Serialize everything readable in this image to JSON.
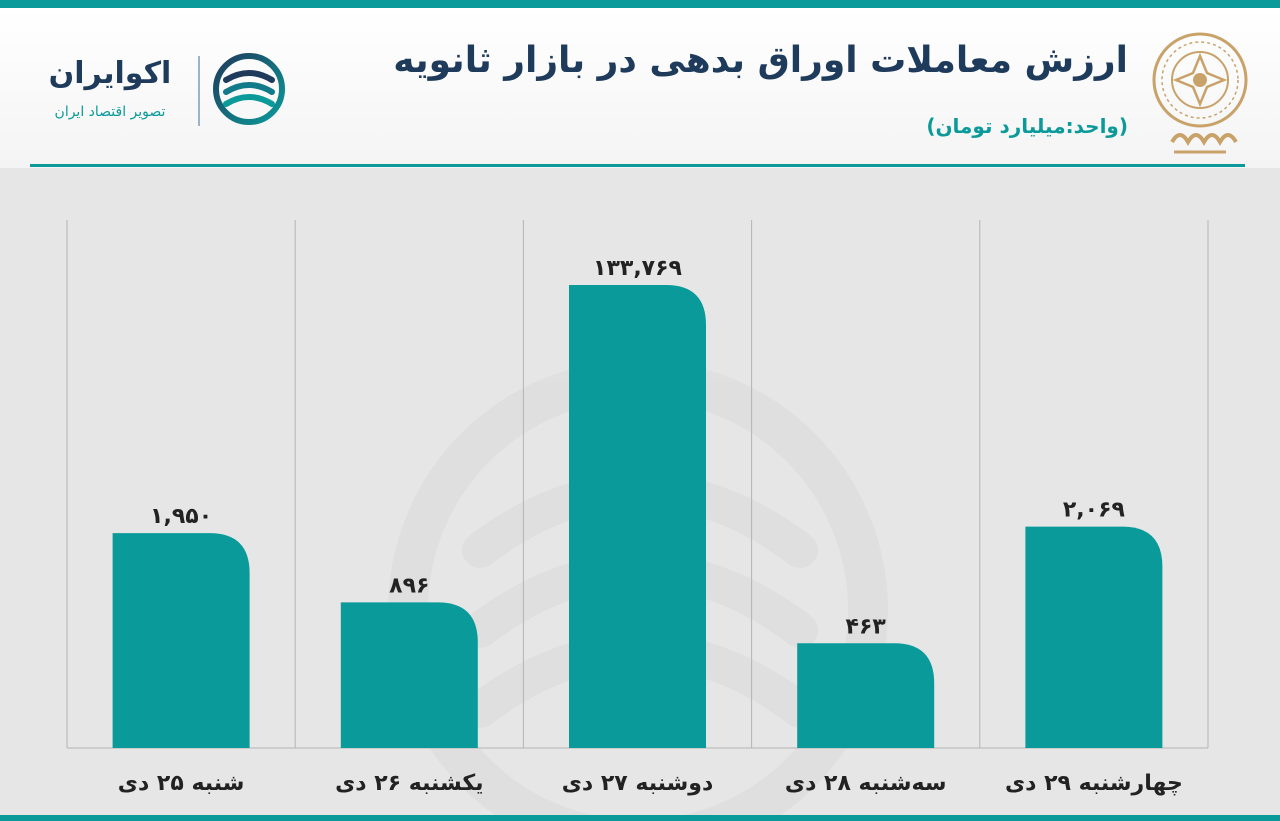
{
  "header": {
    "title": "ارزش معاملات اوراق بدهی در بازار ثانویه",
    "subtitle": "(واحد:میلیارد تومان)",
    "brand_name": "اکوایران",
    "brand_tagline": "تصویر اقتصاد ایران"
  },
  "colors": {
    "bar": "#0b9a9a",
    "title": "#1f3b5c",
    "accent": "#0b9a9a",
    "grid": "#b4b4b4",
    "background": "#e6e6e6"
  },
  "chart_data": {
    "type": "bar",
    "title": "ارزش معاملات اوراق بدهی در بازار ثانویه",
    "subtitle": "(واحد:میلیارد تومان)",
    "xlabel": "",
    "ylabel": "",
    "grid": "vertical separators between categories",
    "categories": [
      "شنبه ۲۵ دی",
      "یکشنبه ۲۶ دی",
      "دوشنبه ۲۷ دی",
      "سه‌شنبه ۲۸ دی",
      "چهارشنبه ۲۹ دی"
    ],
    "values": [
      1950,
      896,
      133769,
      463,
      2069
    ],
    "value_labels": [
      "۱,۹۵۰",
      "۸۹۶",
      "۱۳۳,۷۶۹",
      "۴۶۳",
      "۲,۰۶۹"
    ]
  }
}
